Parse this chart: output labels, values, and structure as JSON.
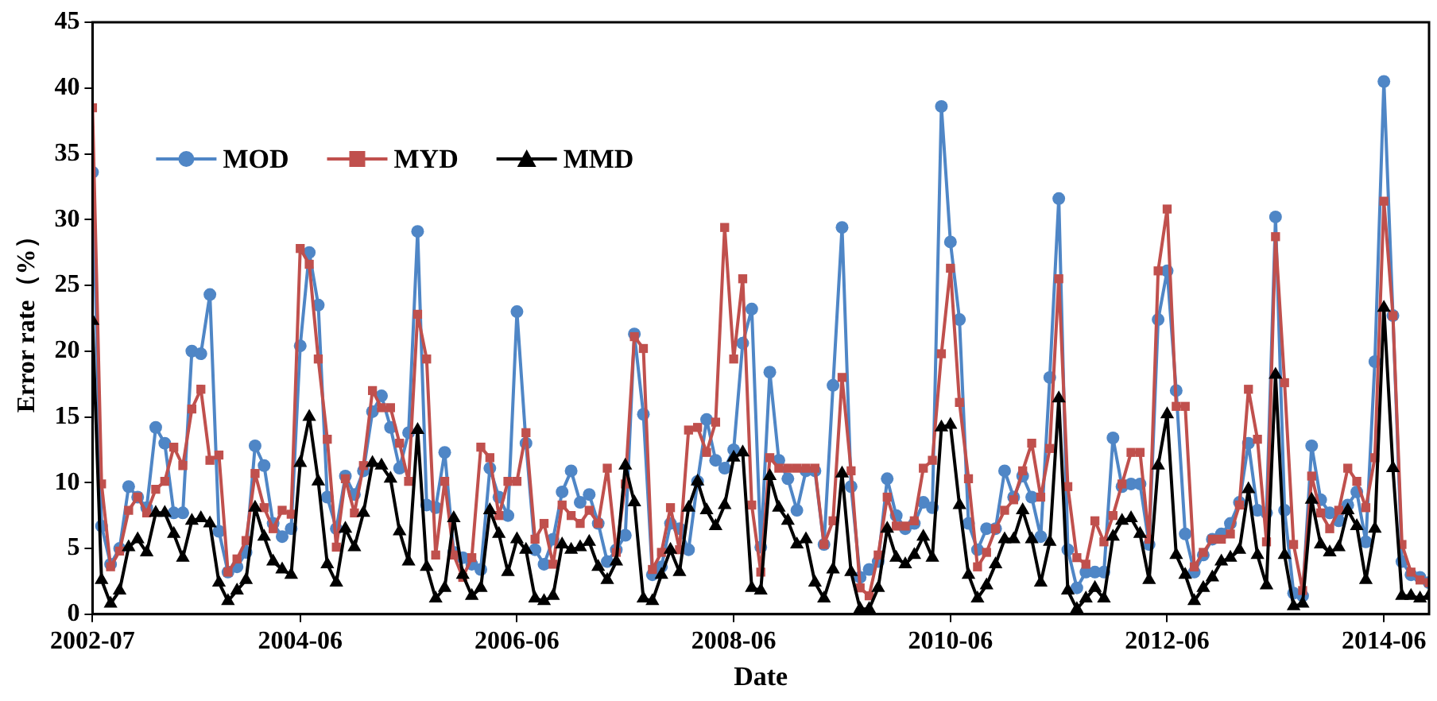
{
  "chart_data": {
    "type": "line",
    "xlabel": "Date",
    "ylabel": "Error rate（%）",
    "x": [
      "2002-07",
      "2002-08",
      "2002-09",
      "2002-10",
      "2002-11",
      "2002-12",
      "2003-01",
      "2003-02",
      "2003-03",
      "2003-04",
      "2003-05",
      "2003-06",
      "2003-07",
      "2003-08",
      "2003-09",
      "2003-10",
      "2003-11",
      "2003-12",
      "2004-01",
      "2004-02",
      "2004-03",
      "2004-04",
      "2004-05",
      "2004-06",
      "2004-07",
      "2004-08",
      "2004-09",
      "2004-10",
      "2004-11",
      "2004-12",
      "2005-01",
      "2005-02",
      "2005-03",
      "2005-04",
      "2005-05",
      "2005-06",
      "2005-07",
      "2005-08",
      "2005-09",
      "2005-10",
      "2005-11",
      "2005-12",
      "2006-01",
      "2006-02",
      "2006-03",
      "2006-04",
      "2006-05",
      "2006-06",
      "2006-07",
      "2006-08",
      "2006-09",
      "2006-10",
      "2006-11",
      "2006-12",
      "2007-01",
      "2007-02",
      "2007-03",
      "2007-04",
      "2007-05",
      "2007-06",
      "2007-07",
      "2007-08",
      "2007-09",
      "2007-10",
      "2007-11",
      "2007-12",
      "2008-01",
      "2008-02",
      "2008-03",
      "2008-04",
      "2008-05",
      "2008-06",
      "2008-07",
      "2008-08",
      "2008-09",
      "2008-10",
      "2008-11",
      "2008-12",
      "2009-01",
      "2009-02",
      "2009-03",
      "2009-04",
      "2009-05",
      "2009-06",
      "2009-07",
      "2009-08",
      "2009-09",
      "2009-10",
      "2009-11",
      "2009-12",
      "2010-01",
      "2010-02",
      "2010-03",
      "2010-04",
      "2010-05",
      "2010-06",
      "2010-07",
      "2010-08",
      "2010-09",
      "2010-10",
      "2010-11",
      "2010-12",
      "2011-01",
      "2011-02",
      "2011-03",
      "2011-04",
      "2011-05",
      "2011-06",
      "2011-07",
      "2011-08",
      "2011-09",
      "2011-10",
      "2011-11",
      "2011-12",
      "2012-01",
      "2012-02",
      "2012-03",
      "2012-04",
      "2012-05",
      "2012-06",
      "2012-07",
      "2012-08",
      "2012-09",
      "2012-10",
      "2012-11",
      "2012-12",
      "2013-01",
      "2013-02",
      "2013-03",
      "2013-04",
      "2013-05",
      "2013-06",
      "2013-07",
      "2013-08",
      "2013-09",
      "2013-10",
      "2013-11",
      "2013-12",
      "2014-01",
      "2014-02",
      "2014-03",
      "2014-04",
      "2014-05",
      "2014-06",
      "2014-07",
      "2014-08",
      "2014-09",
      "2014-10",
      "2014-11"
    ],
    "series": [
      {
        "name": "MOD",
        "color": "#4f86c6",
        "marker": "circle",
        "values": [
          33.6,
          6.7,
          3.8,
          5.0,
          9.7,
          8.9,
          8.1,
          14.2,
          13.0,
          7.7,
          7.7,
          20.0,
          19.8,
          24.3,
          6.3,
          3.2,
          3.6,
          4.7,
          12.8,
          11.3,
          6.9,
          5.9,
          6.5,
          20.4,
          27.5,
          23.5,
          8.9,
          6.5,
          10.5,
          9.1,
          10.9,
          15.4,
          16.6,
          14.2,
          11.1,
          13.8,
          29.1,
          8.3,
          8.1,
          12.3,
          4.7,
          4.3,
          3.8,
          3.4,
          11.1,
          8.9,
          7.5,
          23.0,
          13.0,
          4.9,
          3.8,
          5.7,
          9.3,
          10.9,
          8.5,
          9.1,
          6.9,
          4.0,
          4.9,
          6.0,
          21.3,
          15.2,
          3.0,
          3.6,
          6.9,
          6.5,
          4.9,
          10.1,
          14.8,
          11.7,
          11.1,
          12.5,
          20.6,
          23.2,
          5.1,
          18.4,
          11.7,
          10.3,
          7.9,
          10.9,
          10.9,
          5.3,
          17.4,
          29.4,
          9.7,
          2.8,
          3.4,
          4.0,
          10.3,
          7.5,
          6.5,
          6.9,
          8.5,
          8.1,
          38.6,
          28.3,
          22.4,
          6.9,
          4.9,
          6.5,
          6.5,
          10.9,
          8.9,
          10.5,
          8.9,
          5.9,
          18.0,
          31.6,
          4.9,
          2.0,
          3.2,
          3.2,
          3.2,
          13.4,
          9.7,
          9.9,
          9.9,
          5.3,
          22.4,
          26.1,
          17.0,
          6.1,
          3.2,
          4.5,
          5.7,
          6.1,
          6.9,
          8.5,
          13.0,
          7.9,
          7.7,
          30.2,
          7.9,
          1.6,
          1.4,
          12.8,
          8.7,
          7.7,
          7.1,
          8.3,
          9.3,
          5.5,
          19.2,
          40.5,
          22.7,
          4.0,
          3.0,
          2.8,
          2.4
        ]
      },
      {
        "name": "MYD",
        "color": "#c0504d",
        "marker": "square",
        "values": [
          38.5,
          9.9,
          3.6,
          4.8,
          7.9,
          8.9,
          7.7,
          9.5,
          10.1,
          12.7,
          11.3,
          15.6,
          17.1,
          11.7,
          12.1,
          3.2,
          4.2,
          5.6,
          10.7,
          8.1,
          6.5,
          7.9,
          7.6,
          27.8,
          26.6,
          19.4,
          13.3,
          5.1,
          10.3,
          7.7,
          11.3,
          17.0,
          15.7,
          15.7,
          13.0,
          10.1,
          22.8,
          19.4,
          4.5,
          10.1,
          4.5,
          2.8,
          4.3,
          12.7,
          11.9,
          7.5,
          10.1,
          10.1,
          13.8,
          5.7,
          6.9,
          3.8,
          8.3,
          7.5,
          6.9,
          7.9,
          6.9,
          11.1,
          4.7,
          9.9,
          21.1,
          20.2,
          3.4,
          4.7,
          8.1,
          4.9,
          14.0,
          14.2,
          12.3,
          14.6,
          29.4,
          19.4,
          25.5,
          8.3,
          3.2,
          11.9,
          11.1,
          11.1,
          11.1,
          11.1,
          11.1,
          5.3,
          7.1,
          18.0,
          10.9,
          2.0,
          1.4,
          4.5,
          8.9,
          6.7,
          6.7,
          7.1,
          11.1,
          11.7,
          19.8,
          26.3,
          16.1,
          10.3,
          3.6,
          4.7,
          6.5,
          7.9,
          8.7,
          10.9,
          13.0,
          8.9,
          12.6,
          25.5,
          9.7,
          4.3,
          3.8,
          7.1,
          5.5,
          7.5,
          9.9,
          12.3,
          12.3,
          5.7,
          26.1,
          30.8,
          15.8,
          15.8,
          3.6,
          4.7,
          5.7,
          5.7,
          6.1,
          8.3,
          17.1,
          13.3,
          5.5,
          28.7,
          17.6,
          5.3,
          1.8,
          10.5,
          7.7,
          6.5,
          7.9,
          11.1,
          10.1,
          8.1,
          11.9,
          31.4,
          22.7,
          5.3,
          3.2,
          2.6,
          2.4
        ]
      },
      {
        "name": "MMD",
        "color": "#000000",
        "marker": "triangle",
        "values": [
          22.3,
          2.6,
          0.8,
          1.8,
          5.1,
          5.7,
          4.7,
          7.7,
          7.7,
          6.1,
          4.3,
          7.1,
          7.3,
          6.9,
          2.4,
          1.0,
          1.8,
          2.6,
          8.1,
          5.9,
          4.0,
          3.4,
          3.0,
          11.5,
          15.0,
          10.1,
          3.8,
          2.4,
          6.5,
          5.1,
          7.7,
          11.5,
          11.3,
          10.3,
          6.3,
          4.0,
          14.0,
          3.6,
          1.2,
          2.0,
          7.3,
          3.0,
          1.4,
          2.0,
          7.9,
          6.1,
          3.2,
          5.7,
          4.9,
          1.2,
          1.0,
          1.4,
          5.3,
          4.9,
          5.1,
          5.5,
          3.6,
          2.6,
          4.0,
          11.3,
          8.5,
          1.2,
          1.0,
          3.0,
          4.9,
          3.2,
          8.1,
          10.1,
          7.9,
          6.7,
          8.3,
          11.9,
          12.3,
          2.0,
          1.8,
          10.5,
          8.1,
          7.1,
          5.3,
          5.7,
          2.4,
          1.2,
          3.4,
          10.7,
          3.2,
          0.4,
          0.4,
          2.0,
          6.5,
          4.3,
          3.8,
          4.5,
          5.9,
          4.3,
          14.2,
          14.4,
          8.3,
          3.0,
          1.2,
          2.2,
          3.8,
          5.7,
          5.7,
          7.9,
          5.7,
          2.4,
          5.5,
          16.4,
          1.8,
          0.4,
          1.2,
          2.0,
          1.2,
          5.9,
          7.1,
          7.3,
          6.1,
          2.6,
          11.3,
          15.2,
          4.5,
          3.0,
          1.0,
          2.0,
          2.8,
          4.0,
          4.3,
          4.9,
          9.5,
          4.5,
          2.2,
          18.2,
          4.5,
          0.6,
          0.8,
          8.7,
          5.3,
          4.7,
          5.1,
          7.9,
          6.7,
          2.6,
          6.5,
          23.3,
          11.1,
          1.4,
          1.4,
          1.2,
          1.4
        ]
      }
    ],
    "xlim": [
      "2002-07",
      "2014-11"
    ],
    "xticks": [
      "2002-07",
      "2004-06",
      "2006-06",
      "2008-06",
      "2010-06",
      "2012-06",
      "2014-06"
    ],
    "ylim": [
      0,
      45
    ],
    "yticks": [
      0,
      5,
      10,
      15,
      20,
      25,
      30,
      35,
      40,
      45
    ],
    "grid": false,
    "legend": "top left",
    "line_style": "solid"
  }
}
